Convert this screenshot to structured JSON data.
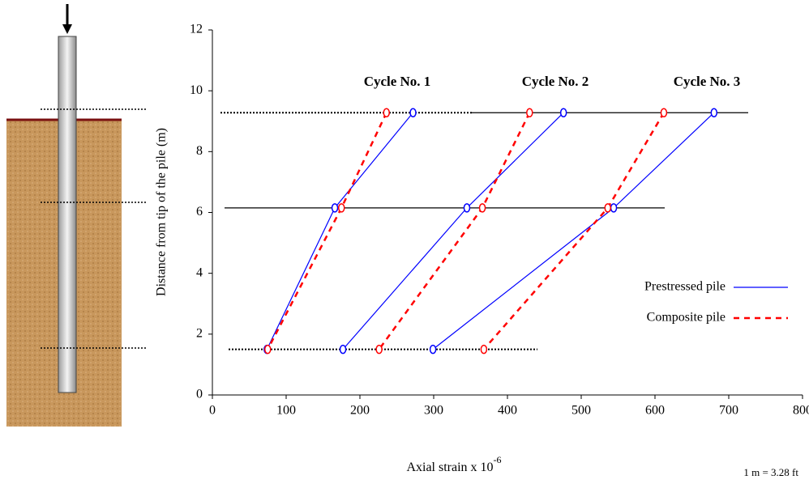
{
  "chart_data": {
    "type": "line",
    "xlabel": "Axial strain x 10",
    "xlabel_exponent": "-6",
    "ylabel": "Distance from tip of the pile (m)",
    "note": "1 m = 3.28 ft",
    "annotations": [
      "Cycle No. 1",
      "Cycle No. 2",
      "Cycle No. 3"
    ],
    "xlim": [
      0,
      800
    ],
    "xticks": [
      0,
      100,
      200,
      300,
      400,
      500,
      600,
      700,
      800
    ],
    "ylim": [
      0,
      12
    ],
    "yticks": [
      0,
      2,
      4,
      6,
      8,
      10,
      12
    ],
    "levels": [
      9.28,
      6.15,
      1.5
    ],
    "series": [
      {
        "name": "Prestressed pile",
        "color": "#0000ff",
        "dashed": false,
        "lines": [
          {
            "x": [
              272,
              166,
              74
            ]
          },
          {
            "x": [
              476,
              345,
              177
            ]
          },
          {
            "x": [
              680,
              544,
              299
            ]
          }
        ]
      },
      {
        "name": "Composite pile",
        "color": "#ff0000",
        "dashed": true,
        "lines": [
          {
            "x": [
              236,
              175,
              75
            ]
          },
          {
            "x": [
              430,
              366,
              226
            ]
          },
          {
            "x": [
              612,
              536,
              368
            ]
          }
        ]
      }
    ]
  }
}
